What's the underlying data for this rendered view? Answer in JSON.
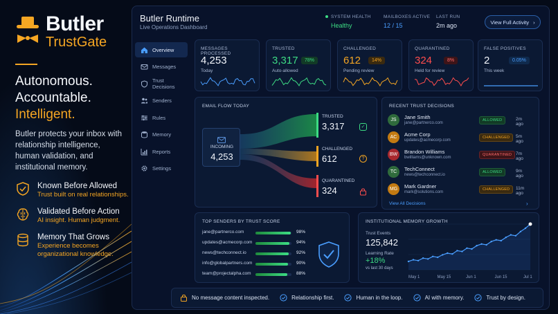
{
  "brand": {
    "name": "Butler",
    "product": "TrustGate",
    "headline": [
      "Autonomous.",
      "Accountable.",
      "Intelligent."
    ],
    "description": "Butler protects your inbox with relationship intelligence, human validation, and institutional memory.",
    "features": [
      {
        "icon": "shield-check-icon",
        "title": "Known Before Allowed",
        "subtitle": "Trust built on real relationships."
      },
      {
        "icon": "brain-icon",
        "title": "Validated Before Action",
        "subtitle": "AI insight. Human judgment."
      },
      {
        "icon": "database-icon",
        "title": "Memory That Grows",
        "subtitle": "Experience becomes organizational knowledge."
      }
    ]
  },
  "header": {
    "title": "Butler Runtime",
    "subtitle": "Live Operations Dashboard",
    "system_health_label": "SYSTEM HEALTH",
    "system_health_value": "Healthy",
    "mailboxes_label": "MAILBOXES ACTIVE",
    "mailboxes_value": "12 / 15",
    "last_run_label": "LAST RUN",
    "last_run_value": "2m ago",
    "activity_button": "View Full Activity",
    "activity_chevron": "›"
  },
  "sidebar": {
    "items": [
      {
        "label": "Overview",
        "icon": "home-icon",
        "active": true
      },
      {
        "label": "Messages",
        "icon": "mail-icon",
        "active": false
      },
      {
        "label": "Trust Decisions",
        "icon": "shield-icon",
        "active": false
      },
      {
        "label": "Senders",
        "icon": "users-icon",
        "active": false
      },
      {
        "label": "Rules",
        "icon": "sliders-icon",
        "active": false
      },
      {
        "label": "Memory",
        "icon": "database-icon",
        "active": false
      },
      {
        "label": "Reports",
        "icon": "chart-icon",
        "active": false
      },
      {
        "label": "Settings",
        "icon": "gear-icon",
        "active": false
      }
    ]
  },
  "kpis": [
    {
      "label": "MESSAGES PROCESSED",
      "value": "4,253",
      "sub": "Today",
      "badge": "",
      "color": "#4a9eff"
    },
    {
      "label": "TRUSTED",
      "value": "3,317",
      "sub": "Auto-allowed",
      "badge": "78%",
      "color": "#3ddc84"
    },
    {
      "label": "CHALLENGED",
      "value": "612",
      "sub": "Pending review",
      "badge": "14%",
      "color": "#f5a623"
    },
    {
      "label": "QUARANTINED",
      "value": "324",
      "sub": "Held for review",
      "badge": "8%",
      "color": "#ff4d4d"
    },
    {
      "label": "FALSE POSITIVES",
      "value": "2",
      "sub": "This week",
      "badge": "0.05%",
      "color": "#4a9eff"
    }
  ],
  "flow": {
    "title": "EMAIL FLOW TODAY",
    "incoming_label": "INCOMING",
    "incoming_value": "4,253",
    "trusted_label": "TRUSTED",
    "trusted_value": "3,317",
    "challenged_label": "CHALLENGED",
    "challenged_value": "612",
    "quarantined_label": "QUARANTINED",
    "quarantined_value": "324",
    "trusted_icon_text": "✓",
    "challenged_icon_text": "?"
  },
  "recent": {
    "title": "RECENT TRUST DECISIONS",
    "view_all": "View All Decisions",
    "view_all_chevron": "›",
    "rows": [
      {
        "initials": "JS",
        "name": "Jane Smith",
        "email": "jane@partnerco.com",
        "status": "ALLOWED",
        "time": "2m ago",
        "avatar_color": "#2f6b3c"
      },
      {
        "initials": "AC",
        "name": "Acme Corp",
        "email": "updates@acmecorp.com",
        "status": "CHALLENGED",
        "time": "5m ago",
        "avatar_color": "#c27a12"
      },
      {
        "initials": "BW",
        "name": "Brandon Williams",
        "email": "bwilliams@unknown.com",
        "status": "QUARANTINED",
        "time": "7m ago",
        "avatar_color": "#a8282e"
      },
      {
        "initials": "TC",
        "name": "TechConnect",
        "email": "news@techconnect.io",
        "status": "ALLOWED",
        "time": "9m ago",
        "avatar_color": "#2f6b3c"
      },
      {
        "initials": "MG",
        "name": "Mark Gardner",
        "email": "mark@solutions.com",
        "status": "CHALLENGED",
        "time": "11m ago",
        "avatar_color": "#c27a12"
      }
    ]
  },
  "senders": {
    "title": "TOP SENDERS BY TRUST SCORE",
    "rows": [
      {
        "email": "jane@partnerco.com",
        "score": 98,
        "label": "98%"
      },
      {
        "email": "updates@acmecorp.com",
        "score": 94,
        "label": "94%"
      },
      {
        "email": "news@techconnect.io",
        "score": 92,
        "label": "92%"
      },
      {
        "email": "info@globalpartners.com",
        "score": 90,
        "label": "90%"
      },
      {
        "email": "team@projectalpha.com",
        "score": 88,
        "label": "88%"
      }
    ]
  },
  "memory": {
    "title": "INSTITUTIONAL MEMORY GROWTH",
    "trust_events_label": "Trust Events",
    "trust_events_value": "125,842",
    "learning_rate_label": "Learning Rate",
    "learning_rate_value": "+18%",
    "learning_rate_sub": "vs last 30 days",
    "x_labels": [
      "May 1",
      "May 15",
      "Jun 1",
      "Jun 15",
      "Jul 1"
    ],
    "values": [
      10,
      12,
      11,
      14,
      13,
      16,
      15,
      18,
      20,
      19,
      23,
      22,
      26,
      25,
      29,
      31,
      30,
      34,
      36,
      35,
      39,
      42,
      41,
      46,
      50,
      55
    ]
  },
  "principles": [
    {
      "icon": "lock-icon",
      "label": "No message content inspected."
    },
    {
      "icon": "check-circle-icon",
      "label": "Relationship first."
    },
    {
      "icon": "check-circle-icon",
      "label": "Human in the loop."
    },
    {
      "icon": "check-circle-icon",
      "label": "AI with memory."
    },
    {
      "icon": "check-circle-icon",
      "label": "Trust by design."
    }
  ],
  "colors": {
    "accent": "#f5a623",
    "trusted": "#3ddc84",
    "challenged": "#f5a623",
    "quarantined": "#ff4d4d",
    "info": "#4a9eff",
    "background": "#050b18"
  }
}
